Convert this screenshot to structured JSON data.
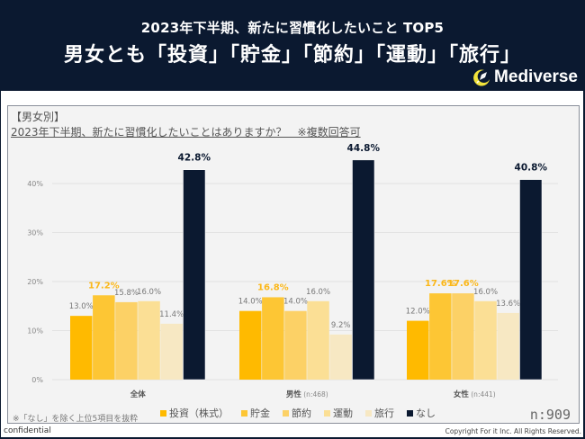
{
  "header": {
    "title_line1": "2023年下半期、新たに習慣化したいこと TOP5",
    "title_line2": "男女とも「投資」「貯金」「節約」「運動」「旅行」",
    "logo_text": "Mediverse",
    "logo_icon": "rocket-moon-icon"
  },
  "panel": {
    "section_label": "【男女別】",
    "question": "2023年下半期、新たに習慣化したいことはありますか？　※複数回答可",
    "footnote": "※「なし」を除く上位5項目を抜粋",
    "n_total": "n:909"
  },
  "footer": {
    "confidential": "confidential",
    "copyright": "Copyright For it Inc. All Rights Reserved."
  },
  "chart_data": {
    "type": "bar",
    "title": "",
    "xlabel": "",
    "ylabel": "",
    "ylim": [
      0,
      45
    ],
    "yticks": [
      0,
      10,
      20,
      30,
      40
    ],
    "ytick_labels": [
      "0%",
      "10%",
      "20%",
      "30%",
      "40%"
    ],
    "grid": true,
    "legend_position": "bottom",
    "categories": [
      "全体",
      "男性",
      "女性"
    ],
    "category_notes": [
      "",
      "(n:468)",
      "(n:441)"
    ],
    "series": [
      {
        "name": "投資（株式）",
        "color": "#ffba00",
        "values": [
          13.0,
          14.0,
          12.0
        ]
      },
      {
        "name": "貯金",
        "color": "#fdc634",
        "values": [
          17.2,
          16.8,
          17.6
        ]
      },
      {
        "name": "節約",
        "color": "#fcd166",
        "values": [
          15.8,
          14.0,
          17.6
        ]
      },
      {
        "name": "運動",
        "color": "#fbdf95",
        "values": [
          16.0,
          16.0,
          16.0
        ]
      },
      {
        "name": "旅行",
        "color": "#f7e8c3",
        "values": [
          11.4,
          9.2,
          13.6
        ]
      },
      {
        "name": "なし",
        "color": "#0b1930",
        "values": [
          42.8,
          44.8,
          40.8
        ]
      }
    ],
    "data_labels": [
      [
        "13.0%",
        "17.2%",
        "15.8%",
        "16.0%",
        "11.4%",
        "42.8%"
      ],
      [
        "14.0%",
        "16.8%",
        "14.0%",
        "16.0%",
        "9.2%",
        "44.8%"
      ],
      [
        "12.0%",
        "17.6%",
        "17.6%",
        "16.0%",
        "13.6%",
        "40.8%"
      ]
    ],
    "highlight_color": "#fbb718",
    "none_label_color": "#0b1930",
    "normal_label_color": "#777777"
  }
}
